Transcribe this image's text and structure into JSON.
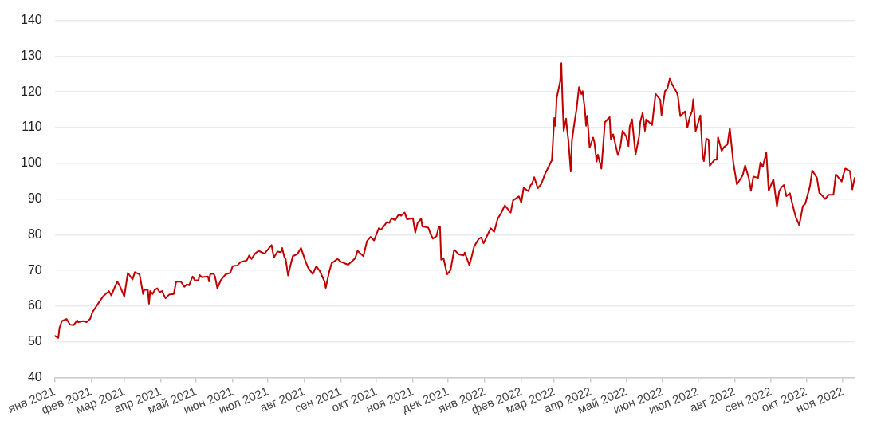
{
  "chart_data": {
    "type": "line",
    "x": [
      "2021-01-01",
      "2021-01-04",
      "2021-01-05",
      "2021-01-07",
      "2021-01-11",
      "2021-01-14",
      "2021-01-17",
      "2021-01-20",
      "2021-01-21",
      "2021-01-25",
      "2021-01-28",
      "2021-01-31",
      "2021-02-02",
      "2021-02-08",
      "2021-02-11",
      "2021-02-16",
      "2021-02-18",
      "2021-02-23",
      "2021-02-25",
      "2021-03-01",
      "2021-03-04",
      "2021-03-08",
      "2021-03-10",
      "2021-03-14",
      "2021-03-17",
      "2021-03-18",
      "2021-03-21",
      "2021-03-22",
      "2021-03-23",
      "2021-03-25",
      "2021-03-27",
      "2021-03-29",
      "2021-03-31",
      "2021-04-02",
      "2021-04-05",
      "2021-04-08",
      "2021-04-12",
      "2021-04-14",
      "2021-04-18",
      "2021-04-21",
      "2021-04-23",
      "2021-04-25",
      "2021-04-28",
      "2021-04-30",
      "2021-05-03",
      "2021-05-04",
      "2021-05-06",
      "2021-05-11",
      "2021-05-12",
      "2021-05-13",
      "2021-05-16",
      "2021-05-17",
      "2021-05-19",
      "2021-05-22",
      "2021-05-26",
      "2021-05-30",
      "2021-06-01",
      "2021-06-05",
      "2021-06-08",
      "2021-06-13",
      "2021-06-15",
      "2021-06-17",
      "2021-06-20",
      "2021-06-23",
      "2021-06-28",
      "2021-07-04",
      "2021-07-06",
      "2021-07-09",
      "2021-07-12",
      "2021-07-13",
      "2021-07-15",
      "2021-07-16",
      "2021-07-18",
      "2021-07-22",
      "2021-07-26",
      "2021-07-29",
      "2021-08-02",
      "2021-08-04",
      "2021-08-08",
      "2021-08-11",
      "2021-08-14",
      "2021-08-18",
      "2021-08-19",
      "2021-08-22",
      "2021-08-24",
      "2021-08-29",
      "2021-09-01",
      "2021-09-07",
      "2021-09-13",
      "2021-09-15",
      "2021-09-20",
      "2021-09-23",
      "2021-09-26",
      "2021-09-29",
      "2021-10-03",
      "2021-10-05",
      "2021-10-10",
      "2021-10-12",
      "2021-10-14",
      "2021-10-17",
      "2021-10-20",
      "2021-10-22",
      "2021-10-25",
      "2021-10-27",
      "2021-11-01",
      "2021-11-03",
      "2021-11-05",
      "2021-11-08",
      "2021-11-09",
      "2021-11-14",
      "2021-11-16",
      "2021-11-18",
      "2021-11-21",
      "2021-11-23",
      "2021-11-24",
      "2021-11-25",
      "2021-11-27",
      "2021-11-30",
      "2021-12-03",
      "2021-12-06",
      "2021-12-10",
      "2021-12-14",
      "2021-12-15",
      "2021-12-19",
      "2021-12-23",
      "2021-12-27",
      "2021-12-29",
      "2021-12-31",
      "2022-01-06",
      "2022-01-09",
      "2022-01-12",
      "2022-01-15",
      "2022-01-18",
      "2022-01-23",
      "2022-01-25",
      "2022-01-30",
      "2022-02-01",
      "2022-02-03",
      "2022-02-07",
      "2022-02-09",
      "2022-02-10",
      "2022-02-12",
      "2022-02-15",
      "2022-02-18",
      "2022-02-21",
      "2022-02-24",
      "2022-02-27",
      "2022-03-01",
      "2022-03-02",
      "2022-03-03",
      "2022-03-06",
      "2022-03-07",
      "2022-03-08",
      "2022-03-09",
      "2022-03-11",
      "2022-03-12",
      "2022-03-13",
      "2022-03-15",
      "2022-03-16",
      "2022-03-18",
      "2022-03-20",
      "2022-03-22",
      "2022-03-24",
      "2022-03-25",
      "2022-03-27",
      "2022-03-28",
      "2022-03-29",
      "2022-03-31",
      "2022-04-03",
      "2022-04-04",
      "2022-04-06",
      "2022-04-07",
      "2022-04-10",
      "2022-04-13",
      "2022-04-17",
      "2022-04-18",
      "2022-04-20",
      "2022-04-24",
      "2022-04-26",
      "2022-04-28",
      "2022-05-01",
      "2022-05-03",
      "2022-05-04",
      "2022-05-06",
      "2022-05-09",
      "2022-05-12",
      "2022-05-13",
      "2022-05-15",
      "2022-05-17",
      "2022-05-18",
      "2022-05-23",
      "2022-05-26",
      "2022-05-30",
      "2022-05-31",
      "2022-06-03",
      "2022-06-05",
      "2022-06-07",
      "2022-06-09",
      "2022-06-13",
      "2022-06-14",
      "2022-06-16",
      "2022-06-20",
      "2022-06-22",
      "2022-06-24",
      "2022-06-26",
      "2022-06-27",
      "2022-06-29",
      "2022-07-03",
      "2022-07-05",
      "2022-07-06",
      "2022-07-08",
      "2022-07-10",
      "2022-07-11",
      "2022-07-15",
      "2022-07-17",
      "2022-07-18",
      "2022-07-21",
      "2022-07-23",
      "2022-07-26",
      "2022-07-28",
      "2022-07-31",
      "2022-08-03",
      "2022-08-06",
      "2022-08-08",
      "2022-08-10",
      "2022-08-13",
      "2022-08-15",
      "2022-08-17",
      "2022-08-21",
      "2022-08-23",
      "2022-08-25",
      "2022-08-28",
      "2022-08-30",
      "2022-09-03",
      "2022-09-06",
      "2022-09-08",
      "2022-09-10",
      "2022-09-12",
      "2022-09-14",
      "2022-09-17",
      "2022-09-19",
      "2022-09-22",
      "2022-09-25",
      "2022-09-28",
      "2022-09-30",
      "2022-10-04",
      "2022-10-06",
      "2022-10-10",
      "2022-10-12",
      "2022-10-13",
      "2022-10-17",
      "2022-10-20",
      "2022-10-24",
      "2022-10-26",
      "2022-10-31",
      "2022-11-01",
      "2022-11-03",
      "2022-11-07",
      "2022-11-09",
      "2022-11-11"
    ],
    "series": [
      {
        "color": "#c00000",
        "values": [
          51.7,
          51.1,
          53.9,
          55.8,
          56.4,
          54.8,
          54.7,
          56,
          55.5,
          55.8,
          55.5,
          56.4,
          58.3,
          61.3,
          62.7,
          64.2,
          63,
          66.9,
          65.8,
          62.7,
          69.3,
          67.5,
          69.5,
          68.9,
          63.4,
          64.6,
          64.5,
          60.7,
          64.2,
          63.4,
          64.6,
          65,
          63.9,
          64.2,
          62.2,
          63.2,
          63.4,
          66.8,
          66.9,
          65.4,
          66.1,
          65.8,
          68.3,
          67.2,
          67.3,
          68.7,
          68.1,
          68.3,
          66.9,
          69,
          69,
          68.3,
          65,
          67.3,
          68.9,
          69.3,
          71.2,
          71.4,
          72.4,
          72.8,
          74.2,
          73.2,
          74.7,
          75.5,
          74.7,
          77.1,
          73.6,
          75.3,
          75.1,
          76.3,
          73.6,
          73.2,
          68.6,
          74,
          74.6,
          76.3,
          72.4,
          70.8,
          69,
          71.2,
          69.8,
          66.9,
          65.1,
          69.7,
          72,
          73.2,
          72.4,
          71.6,
          73.4,
          75.5,
          74,
          78.2,
          79.4,
          78.4,
          81.8,
          81.4,
          83.6,
          83.3,
          84.6,
          84.1,
          85.7,
          85.3,
          86.2,
          84.3,
          84.6,
          80.6,
          83.3,
          84.5,
          82.3,
          82,
          80.2,
          78.9,
          79.6,
          82.3,
          82.2,
          73,
          73.4,
          68.9,
          70.1,
          75.8,
          74.5,
          74.2,
          75,
          71.4,
          76.7,
          78.9,
          79.2,
          77.6,
          81.8,
          80.8,
          84.5,
          86.1,
          88.2,
          86.2,
          89.6,
          90.7,
          89,
          93.1,
          92.2,
          93.9,
          94.2,
          96.1,
          93,
          94.2,
          96.9,
          98.9,
          100.9,
          112.7,
          110.5,
          118.2,
          122.9,
          128,
          117.4,
          109.1,
          112.5,
          109.1,
          106.4,
          97.7,
          106.4,
          111.1,
          115.4,
          121.3,
          119.4,
          120.2,
          115,
          110.5,
          113.3,
          104.4,
          107.2,
          106,
          100.5,
          102.4,
          98.5,
          111.5,
          112.9,
          106.8,
          108.1,
          102.3,
          104.4,
          109.1,
          107.6,
          104.8,
          110.2,
          112.3,
          102.4,
          107.5,
          111.5,
          114.1,
          109.1,
          112.3,
          110.7,
          119.4,
          117.8,
          113.5,
          120.2,
          120.9,
          123.7,
          122.1,
          119.8,
          118.7,
          113.2,
          114.5,
          110,
          112.9,
          114.7,
          117.9,
          109,
          113.4,
          101.8,
          100.6,
          106.9,
          106.6,
          99.3,
          101,
          101,
          107.3,
          103.5,
          104.5,
          105.3,
          109.8,
          100.2,
          94.1,
          95.6,
          96.7,
          99.4,
          96,
          92.3,
          96.3,
          95.9,
          100.2,
          99,
          103,
          92.3,
          95.5,
          88,
          92.3,
          93.3,
          93.9,
          90.8,
          91.6,
          88.8,
          84.9,
          82.7,
          88,
          88.6,
          93.5,
          98,
          95.9,
          91.7,
          91.5,
          90,
          91.2,
          91.2,
          96.9,
          94.9,
          96.3,
          98.5,
          97.8,
          92.7,
          95.9
        ]
      }
    ],
    "xlim": [
      "2021-01-01",
      "2022-11-11"
    ],
    "xticks": [
      {
        "value": "2021-01-01",
        "label": "янв 2021"
      },
      {
        "value": "2021-02-01",
        "label": "фев 2021"
      },
      {
        "value": "2021-03-01",
        "label": "мар 2021"
      },
      {
        "value": "2021-04-01",
        "label": "апр 2021"
      },
      {
        "value": "2021-05-01",
        "label": "май 2021"
      },
      {
        "value": "2021-06-01",
        "label": "июн 2021"
      },
      {
        "value": "2021-07-01",
        "label": "июл 2021"
      },
      {
        "value": "2021-08-01",
        "label": "авг 2021"
      },
      {
        "value": "2021-09-01",
        "label": "сен 2021"
      },
      {
        "value": "2021-10-01",
        "label": "окт 2021"
      },
      {
        "value": "2021-11-01",
        "label": "ноя 2021"
      },
      {
        "value": "2021-12-01",
        "label": "дек 2021"
      },
      {
        "value": "2022-01-01",
        "label": "янв 2022"
      },
      {
        "value": "2022-02-01",
        "label": "фев 2022"
      },
      {
        "value": "2022-03-01",
        "label": "мар 2022"
      },
      {
        "value": "2022-04-01",
        "label": "апр 2022"
      },
      {
        "value": "2022-05-01",
        "label": "май 2022"
      },
      {
        "value": "2022-06-01",
        "label": "июн 2022"
      },
      {
        "value": "2022-07-01",
        "label": "июл 2022"
      },
      {
        "value": "2022-08-01",
        "label": "авг 2022"
      },
      {
        "value": "2022-09-01",
        "label": "сен 2022"
      },
      {
        "value": "2022-10-01",
        "label": "окт 2022"
      },
      {
        "value": "2022-11-01",
        "label": "ноя 2022"
      }
    ],
    "ylim": [
      40,
      140
    ],
    "yticks": [
      40,
      50,
      60,
      70,
      80,
      90,
      100,
      110,
      120,
      130,
      140
    ],
    "grid": "y",
    "legend": false,
    "marker": "none",
    "line_style": "solid"
  }
}
